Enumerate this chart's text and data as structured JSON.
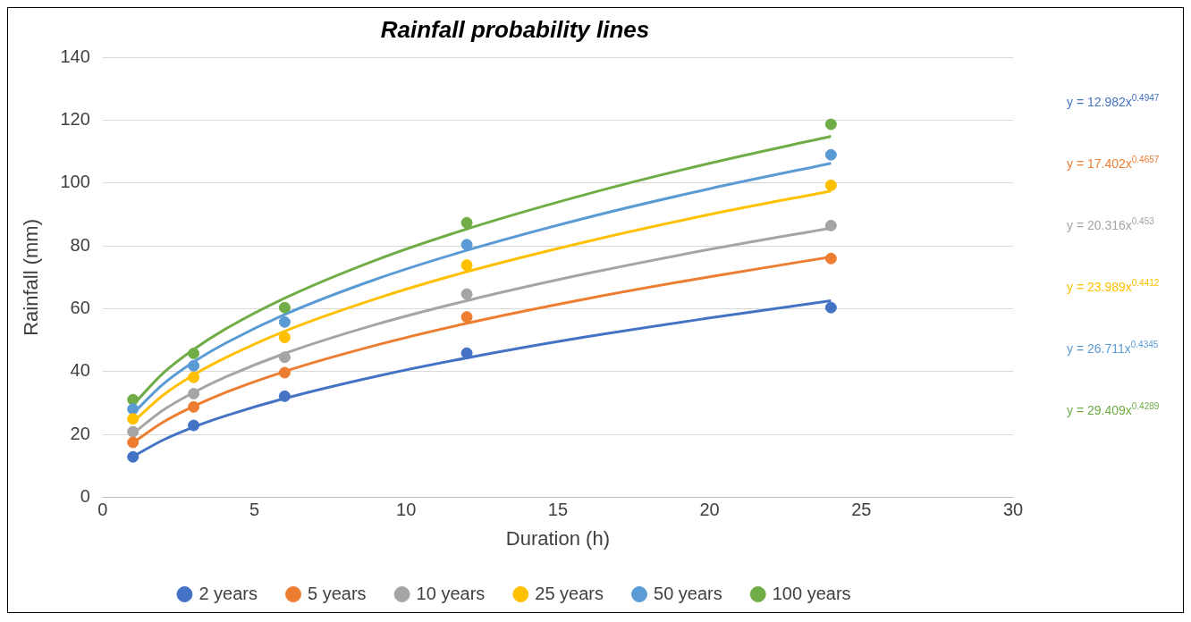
{
  "chart_data": {
    "type": "scatter",
    "title": "Rainfall probability lines",
    "xlabel": "Duration (h)",
    "ylabel": "Rainfall (mm)",
    "x": [
      1,
      3,
      6,
      12,
      24
    ],
    "xlim": [
      0,
      30
    ],
    "xticks": [
      0,
      5,
      10,
      15,
      20,
      25,
      30
    ],
    "ylim": [
      0,
      140
    ],
    "yticks": [
      0,
      20,
      40,
      60,
      80,
      100,
      120,
      140
    ],
    "grid": "y",
    "legend": "bottom",
    "marker": "circle",
    "series": [
      {
        "name": "2 years",
        "color": "#4472c4",
        "values": [
          12.9,
          22.9,
          32.2,
          45.9,
          60.4
        ]
      },
      {
        "name": "5 years",
        "color": "#ed7d31",
        "values": [
          17.5,
          28.8,
          39.7,
          57.4,
          76.0
        ]
      },
      {
        "name": "10 years",
        "color": "#a5a5a5",
        "values": [
          20.9,
          33.0,
          44.6,
          64.7,
          86.5
        ]
      },
      {
        "name": "25 years",
        "color": "#ffc000",
        "values": [
          25.0,
          38.2,
          50.9,
          73.9,
          99.3
        ]
      },
      {
        "name": "50 years",
        "color": "#5b9bd5",
        "values": [
          28.1,
          41.9,
          55.8,
          80.4,
          109.0
        ]
      },
      {
        "name": "100 years",
        "color": "#70ad47",
        "values": [
          31.1,
          45.8,
          60.4,
          87.4,
          118.7
        ]
      },
      {
        "type": "line",
        "marker": "none",
        "color": "#4472c4",
        "x": [
          1,
          2,
          3,
          4,
          6,
          9,
          12,
          16,
          20,
          24
        ],
        "values": [
          13.0,
          18.3,
          22.4,
          25.8,
          31.5,
          38.5,
          44.4,
          51.2,
          57.1,
          62.6
        ]
      },
      {
        "type": "line",
        "marker": "none",
        "color": "#ed7d31",
        "x": [
          1,
          2,
          3,
          4,
          6,
          9,
          12,
          16,
          20,
          24
        ],
        "values": [
          17.4,
          24.0,
          29.0,
          33.2,
          40.1,
          48.4,
          55.4,
          63.3,
          70.2,
          76.5
        ]
      },
      {
        "type": "line",
        "marker": "none",
        "color": "#a5a5a5",
        "x": [
          1,
          2,
          3,
          4,
          6,
          9,
          12,
          16,
          20,
          24
        ],
        "values": [
          20.3,
          27.8,
          33.4,
          38.1,
          45.8,
          55.0,
          62.6,
          71.3,
          78.9,
          85.7
        ]
      },
      {
        "type": "line",
        "marker": "none",
        "color": "#ffc000",
        "x": [
          1,
          2,
          3,
          4,
          6,
          9,
          12,
          16,
          20,
          24
        ],
        "values": [
          24.0,
          32.6,
          39.0,
          44.2,
          52.9,
          63.2,
          71.8,
          81.5,
          90.0,
          97.5
        ]
      },
      {
        "type": "line",
        "marker": "none",
        "color": "#5b9bd5",
        "x": [
          1,
          2,
          3,
          4,
          6,
          9,
          12,
          16,
          20,
          24
        ],
        "values": [
          26.7,
          36.1,
          43.1,
          48.8,
          58.2,
          69.4,
          78.6,
          89.1,
          98.2,
          106.3
        ]
      },
      {
        "type": "line",
        "marker": "none",
        "color": "#70ad47",
        "x": [
          1,
          2,
          3,
          4,
          6,
          9,
          12,
          16,
          20,
          24
        ],
        "values": [
          29.4,
          39.6,
          47.1,
          53.3,
          63.4,
          75.5,
          85.4,
          96.6,
          106.3,
          114.9
        ]
      }
    ],
    "annotations": [
      "y = 12.982x$^{0.4947}$",
      "y = 17.402x$^{0.4657}$",
      "y = 20.316x$^{0.453}$",
      "y = 23.989x$^{0.4412}$",
      "y = 26.711x$^{0.4345}$",
      "y = 29.409x$^{0.4289}$"
    ]
  }
}
